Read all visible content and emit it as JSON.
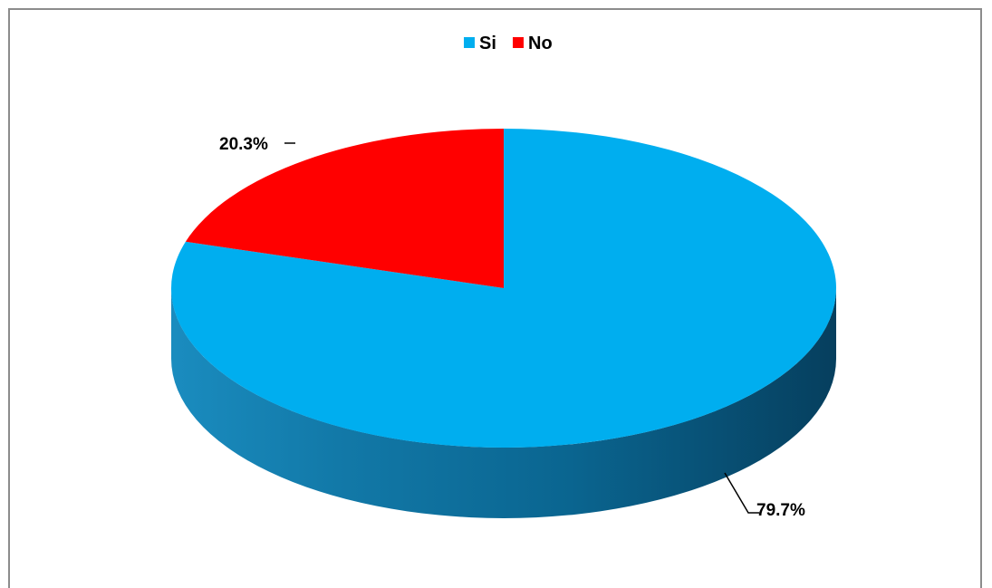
{
  "chart_data": {
    "type": "pie",
    "title": "",
    "categories": [
      "Si",
      "No"
    ],
    "values": [
      79.7,
      20.3
    ],
    "data_labels": [
      "79.7%",
      "20.3%"
    ],
    "colors": [
      "#00AEEF",
      "#FF0000"
    ],
    "side_colors": [
      "#0A6F97",
      "#A80000"
    ],
    "legend": {
      "position": "top",
      "entries": [
        {
          "label": "Si",
          "color": "#00AEEF"
        },
        {
          "label": "No",
          "color": "#FF0000"
        }
      ]
    },
    "style": "3d"
  }
}
